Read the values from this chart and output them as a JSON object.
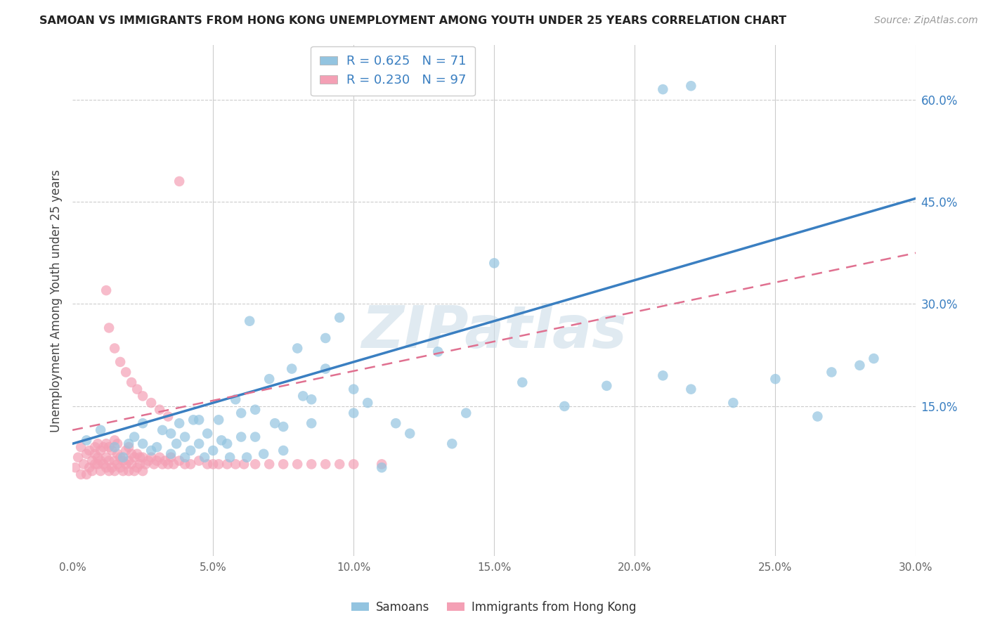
{
  "title": "SAMOAN VS IMMIGRANTS FROM HONG KONG UNEMPLOYMENT AMONG YOUTH UNDER 25 YEARS CORRELATION CHART",
  "source": "Source: ZipAtlas.com",
  "ylabel": "Unemployment Among Youth under 25 years",
  "xlim": [
    0.0,
    0.3
  ],
  "ylim": [
    -0.07,
    0.68
  ],
  "xtick_labels": [
    "0.0%",
    "5.0%",
    "10.0%",
    "15.0%",
    "20.0%",
    "25.0%",
    "30.0%"
  ],
  "xtick_vals": [
    0.0,
    0.05,
    0.1,
    0.15,
    0.2,
    0.25,
    0.3
  ],
  "ytick_right_labels": [
    "60.0%",
    "45.0%",
    "30.0%",
    "15.0%"
  ],
  "ytick_right_vals": [
    0.6,
    0.45,
    0.3,
    0.15
  ],
  "blue_color": "#93c4e0",
  "pink_color": "#f4a0b5",
  "blue_line_color": "#3a7fc1",
  "pink_line_color": "#e07090",
  "legend_blue_label": "R = 0.625   N = 71",
  "legend_pink_label": "R = 0.230   N = 97",
  "watermark": "ZIPatlas",
  "watermark_color": "#ccdde8",
  "background_color": "#ffffff",
  "grid_color": "#cccccc",
  "blue_line_x0": 0.0,
  "blue_line_y0": 0.095,
  "blue_line_x1": 0.3,
  "blue_line_y1": 0.455,
  "pink_line_x0": 0.0,
  "pink_line_y0": 0.115,
  "pink_line_x1": 0.3,
  "pink_line_y1": 0.375,
  "blue_x": [
    0.005,
    0.01,
    0.015,
    0.018,
    0.02,
    0.022,
    0.025,
    0.025,
    0.028,
    0.03,
    0.032,
    0.035,
    0.035,
    0.037,
    0.038,
    0.04,
    0.04,
    0.042,
    0.043,
    0.045,
    0.045,
    0.047,
    0.048,
    0.05,
    0.052,
    0.053,
    0.055,
    0.056,
    0.058,
    0.06,
    0.06,
    0.062,
    0.063,
    0.065,
    0.065,
    0.068,
    0.07,
    0.072,
    0.075,
    0.075,
    0.078,
    0.08,
    0.082,
    0.085,
    0.085,
    0.09,
    0.09,
    0.095,
    0.1,
    0.1,
    0.105,
    0.11,
    0.115,
    0.12,
    0.13,
    0.135,
    0.14,
    0.15,
    0.16,
    0.175,
    0.19,
    0.21,
    0.22,
    0.235,
    0.25,
    0.265,
    0.27,
    0.28,
    0.285,
    0.21,
    0.22
  ],
  "blue_y": [
    0.1,
    0.115,
    0.09,
    0.075,
    0.095,
    0.105,
    0.095,
    0.125,
    0.085,
    0.09,
    0.115,
    0.08,
    0.11,
    0.095,
    0.125,
    0.075,
    0.105,
    0.085,
    0.13,
    0.095,
    0.13,
    0.075,
    0.11,
    0.085,
    0.13,
    0.1,
    0.095,
    0.075,
    0.16,
    0.105,
    0.14,
    0.075,
    0.275,
    0.105,
    0.145,
    0.08,
    0.19,
    0.125,
    0.085,
    0.12,
    0.205,
    0.235,
    0.165,
    0.16,
    0.125,
    0.205,
    0.25,
    0.28,
    0.14,
    0.175,
    0.155,
    0.06,
    0.125,
    0.11,
    0.23,
    0.095,
    0.14,
    0.36,
    0.185,
    0.15,
    0.18,
    0.195,
    0.175,
    0.155,
    0.19,
    0.135,
    0.2,
    0.21,
    0.22,
    0.615,
    0.62
  ],
  "pink_x": [
    0.001,
    0.002,
    0.003,
    0.003,
    0.004,
    0.005,
    0.005,
    0.006,
    0.006,
    0.007,
    0.007,
    0.008,
    0.008,
    0.008,
    0.009,
    0.009,
    0.009,
    0.01,
    0.01,
    0.01,
    0.011,
    0.011,
    0.012,
    0.012,
    0.012,
    0.013,
    0.013,
    0.013,
    0.014,
    0.014,
    0.015,
    0.015,
    0.015,
    0.016,
    0.016,
    0.016,
    0.017,
    0.017,
    0.018,
    0.018,
    0.019,
    0.019,
    0.02,
    0.02,
    0.02,
    0.021,
    0.021,
    0.022,
    0.022,
    0.023,
    0.023,
    0.024,
    0.024,
    0.025,
    0.025,
    0.026,
    0.027,
    0.028,
    0.029,
    0.03,
    0.031,
    0.032,
    0.033,
    0.034,
    0.035,
    0.036,
    0.038,
    0.04,
    0.042,
    0.045,
    0.048,
    0.05,
    0.052,
    0.055,
    0.058,
    0.061,
    0.065,
    0.07,
    0.075,
    0.08,
    0.085,
    0.09,
    0.095,
    0.1,
    0.11,
    0.012,
    0.013,
    0.015,
    0.017,
    0.019,
    0.021,
    0.023,
    0.025,
    0.028,
    0.031,
    0.034,
    0.038
  ],
  "pink_y": [
    0.06,
    0.075,
    0.05,
    0.09,
    0.065,
    0.05,
    0.08,
    0.06,
    0.085,
    0.07,
    0.055,
    0.065,
    0.08,
    0.09,
    0.065,
    0.075,
    0.095,
    0.055,
    0.07,
    0.085,
    0.065,
    0.09,
    0.06,
    0.075,
    0.095,
    0.055,
    0.07,
    0.09,
    0.06,
    0.085,
    0.055,
    0.07,
    0.1,
    0.065,
    0.08,
    0.095,
    0.06,
    0.075,
    0.055,
    0.07,
    0.065,
    0.085,
    0.055,
    0.07,
    0.09,
    0.065,
    0.08,
    0.055,
    0.075,
    0.06,
    0.08,
    0.065,
    0.075,
    0.055,
    0.075,
    0.065,
    0.07,
    0.075,
    0.065,
    0.07,
    0.075,
    0.065,
    0.07,
    0.065,
    0.075,
    0.065,
    0.07,
    0.065,
    0.065,
    0.07,
    0.065,
    0.065,
    0.065,
    0.065,
    0.065,
    0.065,
    0.065,
    0.065,
    0.065,
    0.065,
    0.065,
    0.065,
    0.065,
    0.065,
    0.065,
    0.32,
    0.265,
    0.235,
    0.215,
    0.2,
    0.185,
    0.175,
    0.165,
    0.155,
    0.145,
    0.135,
    0.48
  ]
}
